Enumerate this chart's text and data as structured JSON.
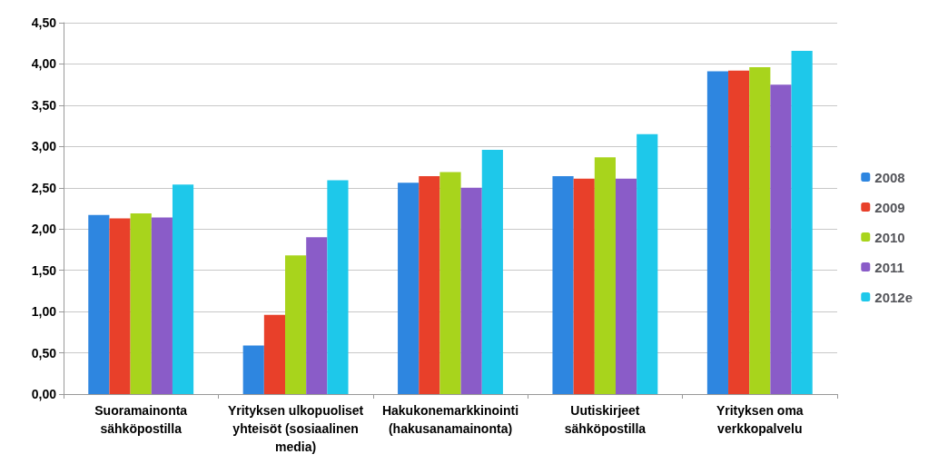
{
  "chart_data": {
    "type": "bar",
    "categories": [
      "Suoramainonta\nsähköpostilla",
      "Yrityksen ulkopuoliset\nyhteisöt (sosiaalinen\nmedia)",
      "Hakukonemarkkinointi\n(hakusanamainonta)",
      "Uutiskirjeet\nsähköpostilla",
      "Yrityksen oma\nverkkopalvelu"
    ],
    "series": [
      {
        "name": "2008",
        "color": "#2e86e0",
        "values": [
          2.17,
          0.59,
          2.56,
          2.64,
          3.91
        ]
      },
      {
        "name": "2009",
        "color": "#e8402a",
        "values": [
          2.13,
          0.96,
          2.64,
          2.61,
          3.92
        ]
      },
      {
        "name": "2010",
        "color": "#a8d41c",
        "values": [
          2.19,
          1.68,
          2.69,
          2.87,
          3.96
        ]
      },
      {
        "name": "2011",
        "color": "#8a5cc8",
        "values": [
          2.14,
          1.9,
          2.5,
          2.61,
          3.75
        ]
      },
      {
        "name": "2012e",
        "color": "#1ec8ea",
        "values": [
          2.54,
          2.59,
          2.96,
          3.15,
          4.16
        ]
      }
    ],
    "ylim": [
      0,
      4.5
    ],
    "yticks": [
      {
        "value": 0,
        "label": "0,00"
      },
      {
        "value": 0.5,
        "label": "0,50"
      },
      {
        "value": 1,
        "label": "1,00"
      },
      {
        "value": 1.5,
        "label": "1,50"
      },
      {
        "value": 2,
        "label": "2,00"
      },
      {
        "value": 2.5,
        "label": "2,50"
      },
      {
        "value": 3,
        "label": "3,00"
      },
      {
        "value": 3.5,
        "label": "3,50"
      },
      {
        "value": 4,
        "label": "4,00"
      },
      {
        "value": 4.5,
        "label": "4,50"
      }
    ],
    "grid": "y",
    "legend": "right"
  }
}
